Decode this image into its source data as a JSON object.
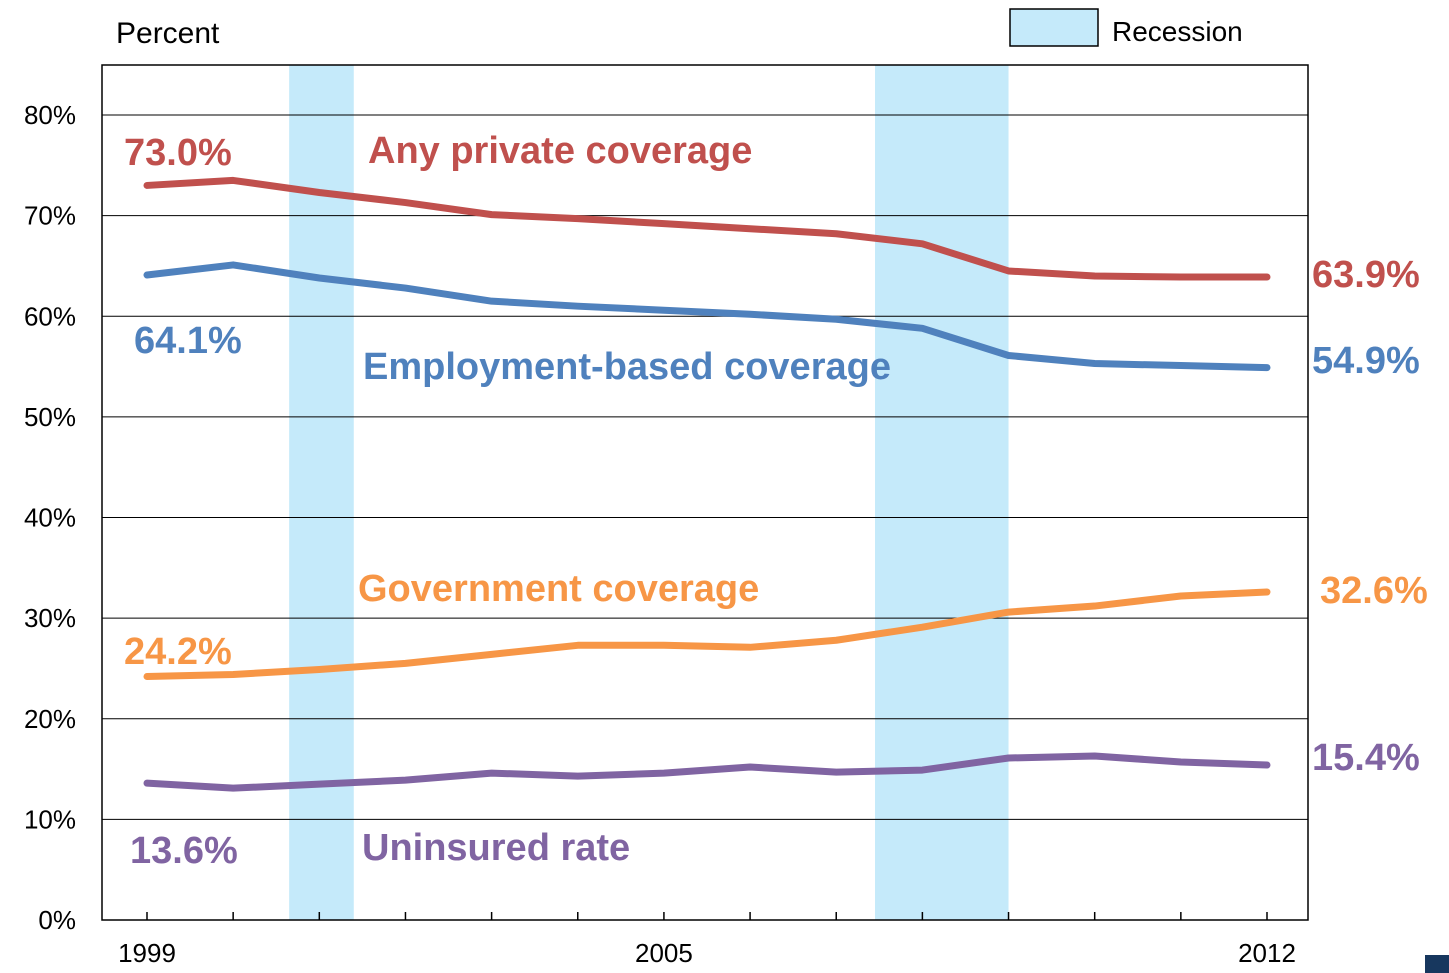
{
  "chart_data": {
    "type": "line",
    "ylabel": "Percent",
    "ylim": [
      0,
      80
    ],
    "yticks": [
      "0%",
      "10%",
      "20%",
      "30%",
      "40%",
      "50%",
      "60%",
      "70%",
      "80%"
    ],
    "yticks_values": [
      0,
      10,
      20,
      30,
      40,
      50,
      60,
      70,
      80
    ],
    "x": [
      1999,
      2000,
      2001,
      2002,
      2003,
      2004,
      2005,
      2006,
      2007,
      2008,
      2009,
      2010,
      2011,
      2012
    ],
    "xlim": [
      1999,
      2012
    ],
    "xtick_labels": [
      "1999",
      "2005",
      "2012"
    ],
    "xtick_values": [
      1999,
      2005,
      2012
    ],
    "grid": "horizontal",
    "legend": {
      "label": "Recession",
      "color": "#c5eafa",
      "placement": "top-right"
    },
    "recessions": [
      {
        "start": 2000.65,
        "end": 2001.4
      },
      {
        "start": 2007.45,
        "end": 2009.0
      }
    ],
    "series": [
      {
        "name": "Any private coverage",
        "color": "#c0504d",
        "values": [
          73.0,
          73.5,
          72.3,
          71.3,
          70.1,
          69.7,
          69.2,
          68.7,
          68.2,
          67.2,
          64.5,
          64.0,
          63.9,
          63.9
        ],
        "start_label": "73.0%",
        "end_label": "63.9%"
      },
      {
        "name": "Employment-based coverage",
        "color": "#4f81bd",
        "values": [
          64.1,
          65.1,
          63.8,
          62.8,
          61.5,
          61.0,
          60.6,
          60.2,
          59.7,
          58.8,
          56.1,
          55.3,
          55.1,
          54.9
        ],
        "start_label": "64.1%",
        "end_label": "54.9%"
      },
      {
        "name": "Government coverage",
        "color": "#f79646",
        "values": [
          24.2,
          24.4,
          24.9,
          25.5,
          26.4,
          27.3,
          27.3,
          27.1,
          27.8,
          29.1,
          30.6,
          31.2,
          32.2,
          32.6
        ],
        "start_label": "24.2%",
        "end_label": "32.6%"
      },
      {
        "name": "Uninsured rate",
        "color": "#8064a2",
        "values": [
          13.6,
          13.1,
          13.5,
          13.9,
          14.6,
          14.3,
          14.6,
          15.2,
          14.7,
          14.9,
          16.1,
          16.3,
          15.7,
          15.4
        ],
        "start_label": "13.6%",
        "end_label": "15.4%"
      }
    ]
  },
  "corner_mark_color": "#17375e"
}
